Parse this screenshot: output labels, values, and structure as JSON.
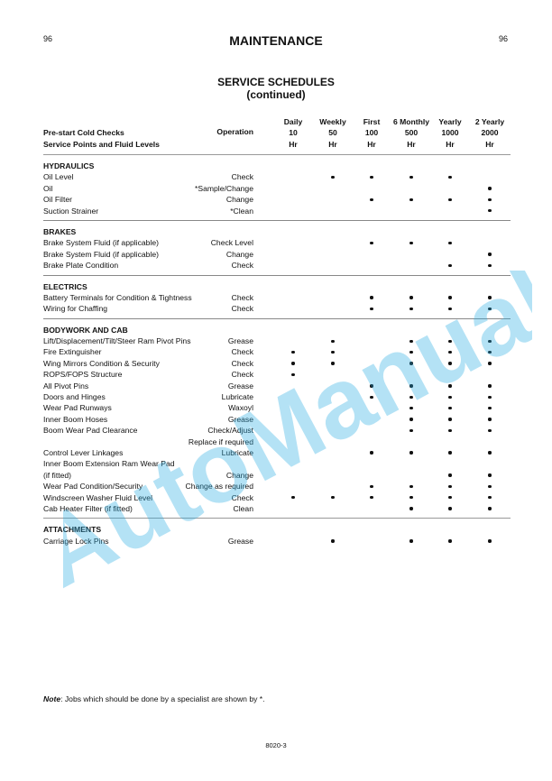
{
  "page": {
    "number_left": "96",
    "number_right": "96",
    "title": "MAINTENANCE",
    "subtitle": "SERVICE SCHEDULES",
    "subtitle2": "(continued)",
    "footer": "8020-3"
  },
  "watermark": {
    "text": "AutoManual",
    "color": "#29abe2"
  },
  "header": {
    "left": [
      "Pre-start Cold Checks",
      "Service Points and Fluid Levels"
    ],
    "operation": "Operation",
    "columns": [
      [
        "Daily",
        "10",
        "Hr"
      ],
      [
        "Weekly",
        "50",
        "Hr"
      ],
      [
        "First",
        "100",
        "Hr"
      ],
      [
        "6 Monthly",
        "500",
        "Hr"
      ],
      [
        "Yearly",
        "1000",
        "Hr"
      ],
      [
        "2 Yearly",
        "2000",
        "Hr"
      ]
    ]
  },
  "sections": [
    {
      "title": "HYDRAULICS",
      "rows": [
        {
          "point": "Oil Level",
          "op": "Check",
          "marks": [
            0,
            1,
            1,
            1,
            1,
            0
          ]
        },
        {
          "point": "Oil",
          "op": "*Sample/Change",
          "marks": [
            0,
            0,
            0,
            0,
            0,
            1
          ]
        },
        {
          "point": "Oil Filter",
          "op": "Change",
          "marks": [
            0,
            0,
            1,
            1,
            1,
            1
          ]
        },
        {
          "point": "Suction Strainer",
          "op": "*Clean",
          "marks": [
            0,
            0,
            0,
            0,
            0,
            1
          ]
        }
      ]
    },
    {
      "title": "BRAKES",
      "rows": [
        {
          "point": "Brake System Fluid (if applicable)",
          "op": "Check Level",
          "marks": [
            0,
            0,
            1,
            1,
            1,
            0
          ]
        },
        {
          "point": "Brake System Fluid (if applicable)",
          "op": "Change",
          "marks": [
            0,
            0,
            0,
            0,
            0,
            1
          ]
        },
        {
          "point": "Brake Plate Condition",
          "op": "Check",
          "marks": [
            0,
            0,
            0,
            0,
            1,
            1
          ]
        }
      ]
    },
    {
      "title": "ELECTRICS",
      "rows": [
        {
          "point": "Battery Terminals for Condition & Tightness",
          "op": "Check",
          "marks": [
            0,
            0,
            1,
            1,
            1,
            1
          ]
        },
        {
          "point": "Wiring for Chaffing",
          "op": "Check",
          "marks": [
            0,
            0,
            1,
            1,
            1,
            1
          ]
        }
      ]
    },
    {
      "title": "BODYWORK AND CAB",
      "rows": [
        {
          "point": "Lift/Displacement/Tilt/Steer Ram Pivot Pins",
          "op": "Grease",
          "marks": [
            0,
            1,
            0,
            1,
            1,
            1
          ]
        },
        {
          "point": "Fire Extinguisher",
          "op": "Check",
          "marks": [
            1,
            1,
            0,
            1,
            1,
            1
          ]
        },
        {
          "point": "Wing Mirrors Condition & Security",
          "op": "Check",
          "marks": [
            1,
            1,
            0,
            1,
            1,
            1
          ]
        },
        {
          "point": "ROPS/FOPS Structure",
          "op": "Check",
          "marks": [
            1,
            0,
            0,
            0,
            0,
            0
          ]
        },
        {
          "point": "All Pivot Pins",
          "op": "Grease",
          "marks": [
            0,
            0,
            1,
            1,
            1,
            1
          ]
        },
        {
          "point": "Doors and Hinges",
          "op": "Lubricate",
          "marks": [
            0,
            0,
            1,
            1,
            1,
            1
          ]
        },
        {
          "point": "Wear Pad Runways",
          "op": "Waxoyl",
          "marks": [
            0,
            0,
            0,
            1,
            1,
            1
          ]
        },
        {
          "point": "Inner Boom Hoses",
          "op": "Grease",
          "marks": [
            0,
            0,
            0,
            1,
            1,
            1
          ]
        },
        {
          "point": "Boom Wear Pad Clearance",
          "op": "Check/Adjust",
          "marks": [
            0,
            0,
            0,
            1,
            1,
            1
          ]
        },
        {
          "point": "",
          "op": "Replace if required",
          "marks": [
            0,
            0,
            0,
            0,
            0,
            0
          ]
        },
        {
          "point": "Control Lever Linkages",
          "op": "Lubricate",
          "marks": [
            0,
            0,
            1,
            1,
            1,
            1
          ]
        },
        {
          "point": "Inner Boom Extension Ram Wear Pad",
          "op": "",
          "marks": [
            0,
            0,
            0,
            0,
            0,
            0
          ]
        },
        {
          "point": "(if fitted)",
          "op": "Change",
          "marks": [
            0,
            0,
            0,
            0,
            1,
            1
          ]
        },
        {
          "point": "Wear Pad Condition/Security",
          "op": "Change as required",
          "marks": [
            0,
            0,
            1,
            1,
            1,
            1
          ]
        },
        {
          "point": "Windscreen Washer Fluid Level",
          "op": "Check",
          "marks": [
            1,
            1,
            1,
            1,
            1,
            1
          ]
        },
        {
          "point": "Cab Heater Filter (if fitted)",
          "op": "Clean",
          "marks": [
            0,
            0,
            0,
            1,
            1,
            1
          ]
        }
      ]
    },
    {
      "title": "ATTACHMENTS",
      "rows": [
        {
          "point": "Carriage Lock Pins",
          "op": "Grease",
          "marks": [
            0,
            1,
            0,
            1,
            1,
            1
          ]
        }
      ]
    }
  ],
  "note": {
    "label": "Note",
    "text": ": Jobs which should be done by a specialist are shown by *."
  }
}
